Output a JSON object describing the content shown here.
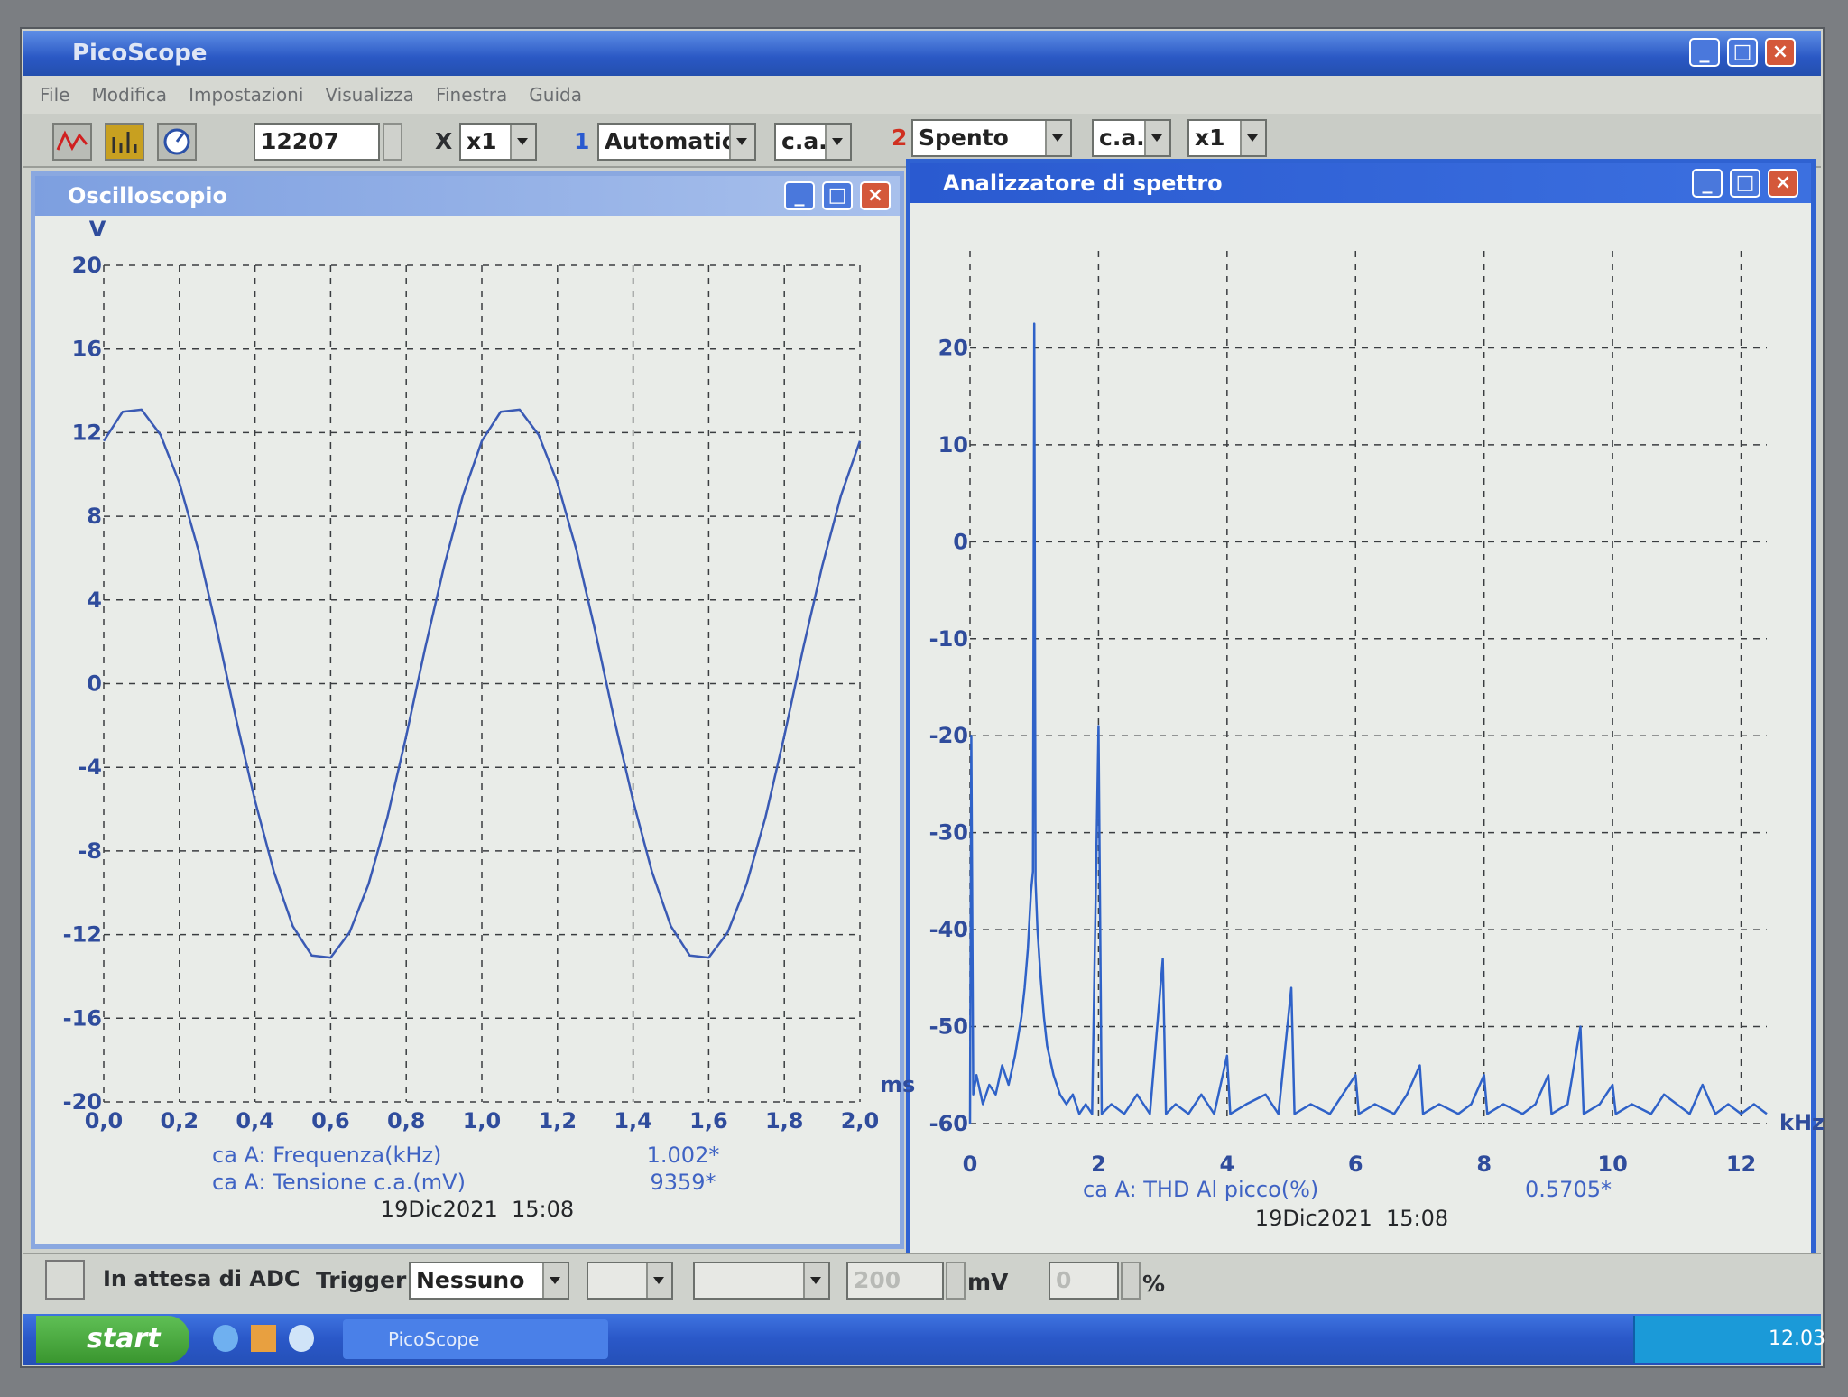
{
  "window": {
    "title": "PicoScope",
    "menu": [
      "File",
      "Modifica",
      "Impostazioni",
      "Visualizza",
      "Finestra",
      "Guida"
    ]
  },
  "toolbar": {
    "samples": "12207",
    "x_label": "X",
    "x_mult": "x1",
    "ch1_label": "1",
    "ch1_range": "Automatico",
    "ch1_coupling": "c.a.",
    "ch2_label": "2",
    "ch2_range": "Spento",
    "ch2_coupling": "c.a.",
    "ch2_mult": "x1"
  },
  "status": {
    "state": "In attesa di ADC",
    "trigger_label": "Trigger",
    "trigger_mode": "Nessuno",
    "threshold": "200",
    "threshold_unit": "mV",
    "delay": "0",
    "delay_unit": "%"
  },
  "taskbar": {
    "start": "start",
    "task": "PicoScope",
    "clock": "12.03"
  },
  "chart_data": [
    {
      "type": "line",
      "window_title": "Oscilloscopio",
      "y_label": "V",
      "x_label": "ms",
      "color": "#3a5ab4",
      "x": [
        0,
        0.05,
        0.1,
        0.15,
        0.2,
        0.25,
        0.3,
        0.35,
        0.4,
        0.45,
        0.5,
        0.55,
        0.6,
        0.65,
        0.7,
        0.75,
        0.8,
        0.85,
        0.9,
        0.95,
        1.0,
        1.05,
        1.1,
        1.15,
        1.2,
        1.25,
        1.3,
        1.35,
        1.4,
        1.45,
        1.5,
        1.55,
        1.6,
        1.65,
        1.7,
        1.75,
        1.8,
        1.85,
        1.9,
        1.95,
        2.0
      ],
      "values": [
        11.6,
        13.0,
        13.1,
        11.9,
        9.6,
        6.4,
        2.5,
        -1.7,
        -5.6,
        -9.0,
        -11.6,
        -13.0,
        -13.1,
        -11.9,
        -9.6,
        -6.4,
        -2.5,
        1.7,
        5.6,
        9.0,
        11.6,
        13.0,
        13.1,
        11.9,
        9.6,
        6.4,
        2.5,
        -1.7,
        -5.6,
        -9.0,
        -11.6,
        -13.0,
        -13.1,
        -11.9,
        -9.6,
        -6.4,
        -2.5,
        1.7,
        5.6,
        9.0,
        11.6
      ],
      "xlim": [
        0,
        2
      ],
      "ylim": [
        -20,
        20
      ],
      "xticks": [
        {
          "value": 0,
          "label": "0,0"
        },
        {
          "value": 0.2,
          "label": "0,2"
        },
        {
          "value": 0.4,
          "label": "0,4"
        },
        {
          "value": 0.6,
          "label": "0,6"
        },
        {
          "value": 0.8,
          "label": "0,8"
        },
        {
          "value": 1.0,
          "label": "1,0"
        },
        {
          "value": 1.2,
          "label": "1,2"
        },
        {
          "value": 1.4,
          "label": "1,4"
        },
        {
          "value": 1.6,
          "label": "1,6"
        },
        {
          "value": 1.8,
          "label": "1,8"
        },
        {
          "value": 2.0,
          "label": "2,0"
        }
      ],
      "yticks": [
        20,
        16,
        12,
        8,
        4,
        0,
        -4,
        -8,
        -12,
        -16,
        -20
      ],
      "grid": true,
      "measurements": [
        {
          "name": "ca A: Frequenza(kHz)",
          "value": "1.002*"
        },
        {
          "name": "ca A: Tensione c.a.(mV)",
          "value": "9359*"
        }
      ],
      "timestamp": "19Dic2021  15:08"
    },
    {
      "type": "line",
      "window_title": "Analizzatore di spettro",
      "x_label": "kHz",
      "color": "#2f62c8",
      "x": [
        0.0,
        0.02,
        0.05,
        0.1,
        0.2,
        0.3,
        0.4,
        0.5,
        0.6,
        0.7,
        0.8,
        0.85,
        0.9,
        0.95,
        0.98,
        1.0,
        1.02,
        1.05,
        1.1,
        1.15,
        1.2,
        1.3,
        1.4,
        1.5,
        1.6,
        1.7,
        1.8,
        1.9,
        2.0,
        2.05,
        2.2,
        2.4,
        2.6,
        2.8,
        3.0,
        3.05,
        3.2,
        3.4,
        3.6,
        3.8,
        4.0,
        4.05,
        4.3,
        4.6,
        4.8,
        5.0,
        5.05,
        5.3,
        5.6,
        5.8,
        6.0,
        6.05,
        6.3,
        6.6,
        6.8,
        7.0,
        7.05,
        7.3,
        7.6,
        7.8,
        8.0,
        8.05,
        8.3,
        8.6,
        8.8,
        9.0,
        9.05,
        9.3,
        9.5,
        9.55,
        9.8,
        10.0,
        10.05,
        10.3,
        10.6,
        10.8,
        11.0,
        11.2,
        11.4,
        11.6,
        11.8,
        12.0,
        12.2,
        12.4
      ],
      "values": [
        -60,
        -20,
        -57,
        -55,
        -58,
        -56,
        -57,
        -54,
        -56,
        -53,
        -49,
        -46,
        -42,
        -36,
        -34,
        22.5,
        -35,
        -40,
        -45,
        -49,
        -52,
        -55,
        -57,
        -58,
        -57,
        -59,
        -58,
        -59,
        -19,
        -59,
        -58,
        -59,
        -57,
        -59,
        -43,
        -59,
        -58,
        -59,
        -57,
        -59,
        -53,
        -59,
        -58,
        -57,
        -59,
        -46,
        -59,
        -58,
        -59,
        -57,
        -55,
        -59,
        -58,
        -59,
        -57,
        -54,
        -59,
        -58,
        -59,
        -58,
        -55,
        -59,
        -58,
        -59,
        -58,
        -55,
        -59,
        -58,
        -50,
        -59,
        -58,
        -56,
        -59,
        -58,
        -59,
        -57,
        -58,
        -59,
        -56,
        -59,
        -58,
        -59,
        -58,
        -59
      ],
      "xlim": [
        0,
        12.4
      ],
      "ylim": [
        -60,
        30
      ],
      "xticks": [
        0,
        2,
        4,
        6,
        8,
        10,
        12
      ],
      "yticks": [
        20,
        10,
        0,
        -10,
        -20,
        -30,
        -40,
        -50,
        -60
      ],
      "grid": true,
      "measurements": [
        {
          "name": "ca A: THD Al picco(%)",
          "value": "0.5705*"
        }
      ],
      "timestamp": "19Dic2021  15:08"
    }
  ]
}
